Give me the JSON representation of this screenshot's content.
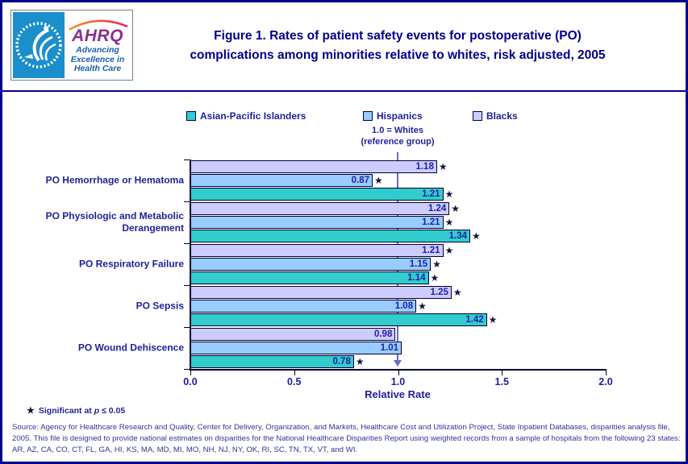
{
  "header": {
    "title_line1": "Figure 1. Rates of patient safety events for postoperative (PO)",
    "title_line2": "complications among minorities relative to whites, risk adjusted, 2005",
    "logo": {
      "name": "AHRQ",
      "tagline_line1": "Advancing",
      "tagline_line2": "Excellence in",
      "tagline_line3": "Health Care"
    }
  },
  "chart_data": {
    "type": "bar",
    "orientation": "horizontal",
    "title": "Rates of patient safety events for postoperative (PO) complications among minorities relative to whites, risk adjusted, 2005",
    "categories": [
      "PO Hemorrhage or Hematoma",
      "PO Physiologic and Metabolic Derangement",
      "PO Respiratory Failure",
      "PO Sepsis",
      "PO Wound Dehiscence"
    ],
    "series": [
      {
        "name": "Blacks",
        "color": "#CCCCFF",
        "values": [
          1.18,
          1.24,
          1.21,
          1.25,
          0.98
        ],
        "significant": [
          true,
          true,
          true,
          true,
          false
        ]
      },
      {
        "name": "Hispanics",
        "color": "#99CCFF",
        "values": [
          0.87,
          1.21,
          1.15,
          1.08,
          1.01
        ],
        "significant": [
          true,
          true,
          true,
          true,
          false
        ]
      },
      {
        "name": "Asian-Pacific Islanders",
        "color": "#33CCCC",
        "values": [
          1.21,
          1.34,
          1.14,
          1.42,
          0.78
        ],
        "significant": [
          true,
          true,
          true,
          true,
          true
        ]
      }
    ],
    "legend_order": [
      "Asian-Pacific Islanders",
      "Hispanics",
      "Blacks"
    ],
    "legend_position": "top",
    "grid": false,
    "xlabel": "Relative Rate",
    "xlim": [
      0,
      2
    ],
    "xticks": [
      "0.0",
      "0.5",
      "1.0",
      "1.5",
      "2.0"
    ],
    "reference_line": {
      "value": 1.0,
      "label_line1": "1.0 = Whites",
      "label_line2": "(reference group)"
    }
  },
  "footnote": {
    "star": "★",
    "text_before_p": "Significant at",
    "p": "p",
    "text_after_p": "≤ 0.05"
  },
  "source_text": "Source: Agency for Healthcare Research and Quality, Center for Delivery, Organization, and Markets, Healthcare Cost and Utilization Project, State Inpatient Databases, disparities analysis file, 2005. This file is designed to provide national estimates on disparities for the National Healthcare Disparities Report using weighted records from a sample of hospitals from the following 23 states: AR, AZ, CA, CO, CT, FL, GA, HI, KS, MA, MD, MI, MO, NH, NJ, NY, OK, RI, SC, TN, TX, VT, and WI."
}
